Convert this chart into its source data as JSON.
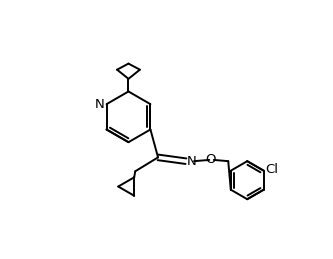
{
  "bg_color": "#ffffff",
  "line_color": "#000000",
  "line_width": 1.4,
  "font_size": 9.5,
  "figsize": [
    3.33,
    2.59
  ],
  "dpi": 100,
  "xlim": [
    0,
    10
  ],
  "ylim": [
    0,
    10
  ]
}
